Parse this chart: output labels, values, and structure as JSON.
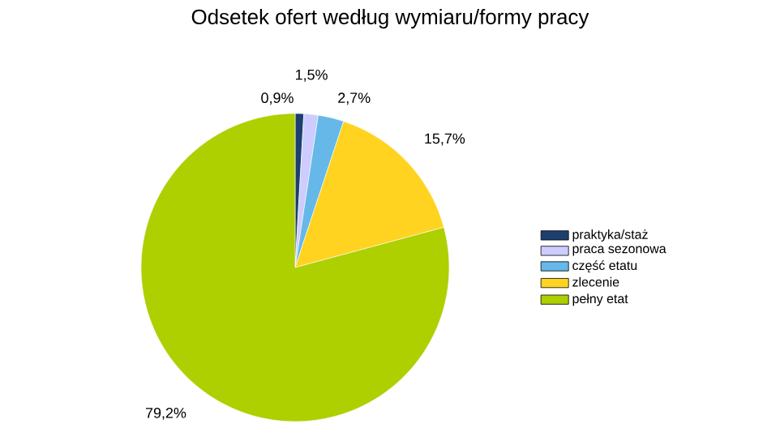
{
  "chart_data": {
    "type": "pie",
    "title": "Odsetek ofert według wymiaru/formy pracy",
    "categories": [
      "praktyka/staż",
      "praca sezonowa",
      "część etatu",
      "zlecenie",
      "pełny etat"
    ],
    "values": [
      0.9,
      1.5,
      2.7,
      15.7,
      79.2
    ],
    "value_labels": [
      "0,9%",
      "1,5%",
      "2,7%",
      "15,7%",
      "79,2%"
    ],
    "colors": [
      "#1c3f6e",
      "#ccccff",
      "#66b8e8",
      "#ffd320",
      "#aecf00"
    ],
    "legend": "right"
  }
}
